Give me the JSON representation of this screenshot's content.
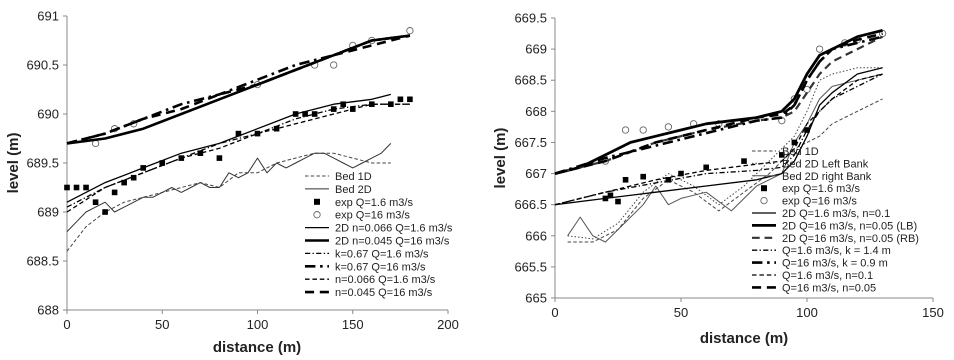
{
  "chart_data": [
    {
      "type": "line",
      "xlabel": "distance (m)",
      "ylabel": "level (m)",
      "xlim": [
        0,
        200
      ],
      "ylim": [
        688,
        691
      ],
      "x_ticks": [
        "0",
        "50",
        "100",
        "150",
        "200"
      ],
      "y_ticks": [
        "688",
        "688.5",
        "689",
        "689.5",
        "690",
        "690.5",
        "691"
      ],
      "grid": false,
      "legend_position": "bottom-right",
      "series": [
        {
          "name": "Bed 1D",
          "style": "dashed",
          "stroke": "#444444",
          "width": 1,
          "x": [
            0,
            10,
            20,
            30,
            40,
            50,
            60,
            70,
            80,
            90,
            100,
            110,
            120,
            130,
            140,
            150,
            160,
            170
          ],
          "y": [
            688.6,
            688.85,
            689.0,
            689.1,
            689.15,
            689.2,
            689.25,
            689.3,
            689.25,
            689.4,
            689.4,
            689.5,
            689.55,
            689.6,
            689.6,
            689.55,
            689.5,
            689.5
          ]
        },
        {
          "name": "Bed 2D",
          "style": "solid",
          "stroke": "#333333",
          "width": 1,
          "x": [
            0,
            5,
            10,
            15,
            20,
            25,
            30,
            35,
            40,
            45,
            50,
            55,
            60,
            65,
            70,
            75,
            80,
            85,
            90,
            95,
            100,
            105,
            110,
            115,
            120,
            125,
            130,
            135,
            140,
            145,
            150,
            155,
            160,
            165,
            170
          ],
          "y": [
            688.8,
            688.9,
            689.0,
            689.05,
            689.1,
            689.0,
            689.05,
            689.1,
            689.15,
            689.15,
            689.2,
            689.25,
            689.2,
            689.25,
            689.3,
            689.25,
            689.25,
            689.4,
            689.35,
            689.4,
            689.55,
            689.4,
            689.5,
            689.45,
            689.5,
            689.55,
            689.6,
            689.6,
            689.55,
            689.5,
            689.45,
            689.5,
            689.55,
            689.6,
            689.7
          ]
        },
        {
          "name": "exp Q=1.6 m3/s",
          "style": "marker-square",
          "x": [
            0,
            5,
            10,
            15,
            20,
            25,
            30,
            35,
            40,
            50,
            60,
            70,
            80,
            90,
            100,
            110,
            120,
            125,
            130,
            140,
            145,
            150,
            160,
            170,
            175,
            180
          ],
          "y": [
            689.25,
            689.25,
            689.25,
            689.1,
            689.0,
            689.2,
            689.3,
            689.35,
            689.45,
            689.5,
            689.55,
            689.6,
            689.55,
            689.8,
            689.8,
            689.85,
            690.0,
            690.0,
            690.0,
            690.05,
            690.1,
            690.05,
            690.1,
            690.1,
            690.15,
            690.15
          ]
        },
        {
          "name": "exp Q=16 m3/s",
          "style": "marker-circle",
          "x": [
            15,
            25,
            35,
            100,
            130,
            140,
            150,
            160,
            180
          ],
          "y": [
            689.7,
            689.85,
            689.9,
            690.3,
            690.5,
            690.5,
            690.7,
            690.75,
            690.85
          ]
        },
        {
          "name": "2D  n=0.066 Q=1.6 m3/s",
          "style": "solid",
          "stroke": "#000000",
          "width": 1.3,
          "x": [
            0,
            20,
            40,
            60,
            80,
            100,
            120,
            140,
            160,
            170
          ],
          "y": [
            689.1,
            689.3,
            689.45,
            689.6,
            689.7,
            689.85,
            690.0,
            690.1,
            690.15,
            690.2
          ]
        },
        {
          "name": "2D n=0.045 Q=16 m3/s",
          "style": "solid",
          "stroke": "#000000",
          "width": 2.6,
          "x": [
            0,
            20,
            40,
            60,
            80,
            100,
            120,
            140,
            160,
            180
          ],
          "y": [
            689.7,
            689.75,
            689.85,
            690.0,
            690.15,
            690.3,
            690.45,
            690.6,
            690.75,
            690.8
          ]
        },
        {
          "name": "k=0.67 Q=1.6 m3/s",
          "style": "dashdot",
          "stroke": "#000000",
          "width": 1.3,
          "x": [
            0,
            20,
            40,
            60,
            80,
            100,
            120,
            140,
            160,
            180
          ],
          "y": [
            689.05,
            689.25,
            689.4,
            689.55,
            689.7,
            689.8,
            689.95,
            690.05,
            690.1,
            690.1
          ]
        },
        {
          "name": "k=0.67 Q=16 m3/s",
          "style": "dashdot",
          "stroke": "#000000",
          "width": 2.6,
          "x": [
            0,
            20,
            40,
            60,
            80,
            100,
            120,
            140,
            160,
            180
          ],
          "y": [
            689.7,
            689.8,
            689.95,
            690.1,
            690.2,
            690.35,
            690.5,
            690.6,
            690.75,
            690.8
          ]
        },
        {
          "name": "n=0.066 Q=1.6 m3/s",
          "style": "dashed",
          "stroke": "#000000",
          "width": 1.3,
          "x": [
            0,
            20,
            40,
            60,
            80,
            100,
            120,
            140,
            160,
            180
          ],
          "y": [
            689.0,
            689.25,
            689.4,
            689.55,
            689.65,
            689.8,
            689.9,
            690.0,
            690.1,
            690.1
          ]
        },
        {
          "name": "n=0.045 Q=16 m3/s",
          "style": "dashed",
          "stroke": "#000000",
          "width": 2.6,
          "x": [
            0,
            20,
            40,
            60,
            80,
            100,
            120,
            140,
            160,
            180
          ],
          "y": [
            689.7,
            689.8,
            689.95,
            690.05,
            690.2,
            690.3,
            690.45,
            690.6,
            690.7,
            690.8
          ]
        }
      ]
    },
    {
      "type": "line",
      "xlabel": "distance (m)",
      "ylabel": "level (m)",
      "xlim": [
        0,
        150
      ],
      "ylim": [
        665,
        669.5
      ],
      "x_ticks": [
        "0",
        "50",
        "100",
        "150"
      ],
      "y_ticks": [
        "665",
        "665.5",
        "666",
        "666.5",
        "667",
        "667.5",
        "668",
        "668.5",
        "669",
        "669.5"
      ],
      "grid": false,
      "legend_position": "bottom-right",
      "series": [
        {
          "name": "Bed 1D",
          "style": "dashed",
          "stroke": "#444444",
          "width": 1,
          "x": [
            5,
            15,
            25,
            35,
            45,
            55,
            65,
            75,
            85,
            95,
            100,
            105,
            110,
            120,
            130
          ],
          "y": [
            665.9,
            665.9,
            666.1,
            666.6,
            666.9,
            666.7,
            666.4,
            666.7,
            667.0,
            667.4,
            667.5,
            667.6,
            667.8,
            668.0,
            668.2
          ]
        },
        {
          "name": "Bed 2D Left Bank",
          "style": "dotted",
          "stroke": "#444444",
          "width": 1,
          "x": [
            5,
            15,
            25,
            35,
            45,
            55,
            65,
            75,
            85,
            95,
            100,
            105,
            110,
            120,
            130
          ],
          "y": [
            666.0,
            665.95,
            666.2,
            666.7,
            667.0,
            666.8,
            666.5,
            666.8,
            667.2,
            667.6,
            668.0,
            668.5,
            668.6,
            668.7,
            668.7
          ]
        },
        {
          "name": "Bed 2D right Bank",
          "style": "solid",
          "stroke": "#555555",
          "width": 1,
          "x": [
            5,
            10,
            15,
            20,
            25,
            30,
            35,
            40,
            45,
            50,
            60,
            70,
            80,
            90,
            95,
            100,
            105,
            110,
            120,
            130
          ],
          "y": [
            666.0,
            666.3,
            666.0,
            665.9,
            666.1,
            666.3,
            666.5,
            666.8,
            666.5,
            666.6,
            666.7,
            666.4,
            666.8,
            667.0,
            667.5,
            667.8,
            668.2,
            668.4,
            668.5,
            668.6
          ]
        },
        {
          "name": "exp Q=1.6 m3/s",
          "style": "marker-square",
          "x": [
            20,
            22,
            25,
            28,
            35,
            45,
            50,
            60,
            75,
            90,
            95,
            100
          ],
          "y": [
            666.6,
            666.65,
            666.55,
            666.9,
            666.95,
            666.9,
            667.0,
            667.1,
            667.2,
            667.3,
            667.5,
            667.7
          ]
        },
        {
          "name": "exp Q=16 m3/s",
          "style": "marker-circle",
          "x": [
            20,
            28,
            35,
            45,
            55,
            65,
            90,
            95,
            100,
            105,
            115,
            120,
            130
          ],
          "y": [
            667.2,
            667.7,
            667.7,
            667.75,
            667.8,
            667.8,
            667.85,
            668.2,
            668.35,
            669.0,
            669.1,
            669.15,
            669.25
          ]
        },
        {
          "name": "2D Q=1.6 m3/s, n=0.1",
          "style": "solid",
          "stroke": "#000000",
          "width": 1.3,
          "x": [
            0,
            20,
            40,
            60,
            80,
            90,
            95,
            100,
            105,
            110,
            120,
            130
          ],
          "y": [
            666.5,
            666.6,
            666.7,
            666.8,
            666.9,
            667.0,
            667.2,
            667.6,
            668.1,
            668.3,
            668.6,
            668.7
          ]
        },
        {
          "name": "2D Q=16 m3/s, n=0.05 (LB)",
          "style": "solid",
          "stroke": "#000000",
          "width": 2.8,
          "x": [
            0,
            10,
            20,
            30,
            40,
            50,
            60,
            70,
            80,
            90,
            95,
            100,
            105,
            110,
            120,
            130
          ],
          "y": [
            667.0,
            667.1,
            667.3,
            667.5,
            667.6,
            667.7,
            667.8,
            667.85,
            667.9,
            668.0,
            668.2,
            668.6,
            668.9,
            669.0,
            669.2,
            669.3
          ]
        },
        {
          "name": "2D Q=16 m3/s, n=0.05 (RB)",
          "style": "dashed",
          "stroke": "#333333",
          "width": 2.2,
          "x": [
            0,
            20,
            40,
            60,
            80,
            90,
            95,
            100,
            105,
            110,
            120,
            130
          ],
          "y": [
            667.0,
            667.2,
            667.5,
            667.7,
            667.85,
            667.9,
            668.0,
            668.3,
            668.6,
            668.8,
            669.0,
            669.2
          ]
        },
        {
          "name": "Q=1.6 m3/s, k = 1.4 m",
          "style": "dashdot",
          "stroke": "#000000",
          "width": 1.3,
          "x": [
            0,
            20,
            40,
            60,
            80,
            90,
            95,
            100,
            105,
            110,
            120,
            130
          ],
          "y": [
            666.5,
            666.7,
            666.85,
            667.0,
            667.05,
            667.1,
            667.3,
            667.7,
            668.0,
            668.2,
            668.4,
            668.6
          ]
        },
        {
          "name": "Q=16 m3/s, k = 0.9 m",
          "style": "dashdot",
          "stroke": "#000000",
          "width": 2.6,
          "x": [
            0,
            20,
            40,
            60,
            80,
            90,
            95,
            100,
            105,
            110,
            120,
            130
          ],
          "y": [
            667.0,
            667.25,
            667.45,
            667.65,
            667.85,
            667.9,
            668.1,
            668.5,
            668.8,
            669.0,
            669.1,
            669.2
          ]
        },
        {
          "name": "Q=1.6 m3/s, n=0.1",
          "style": "dashed",
          "stroke": "#000000",
          "width": 1.3,
          "x": [
            0,
            20,
            40,
            60,
            80,
            90,
            95,
            100,
            105,
            110,
            120,
            130
          ],
          "y": [
            666.5,
            666.7,
            666.9,
            667.05,
            667.15,
            667.2,
            667.4,
            667.8,
            668.0,
            668.2,
            668.5,
            668.6
          ]
        },
        {
          "name": "Q=16 m3/s, n=0.05",
          "style": "dashed",
          "stroke": "#000000",
          "width": 2.6,
          "x": [
            0,
            20,
            40,
            60,
            80,
            90,
            95,
            100,
            105,
            110,
            120,
            130
          ],
          "y": [
            667.0,
            667.2,
            667.5,
            667.7,
            667.9,
            667.95,
            668.1,
            668.5,
            668.8,
            669.0,
            669.15,
            669.25
          ]
        }
      ]
    }
  ]
}
